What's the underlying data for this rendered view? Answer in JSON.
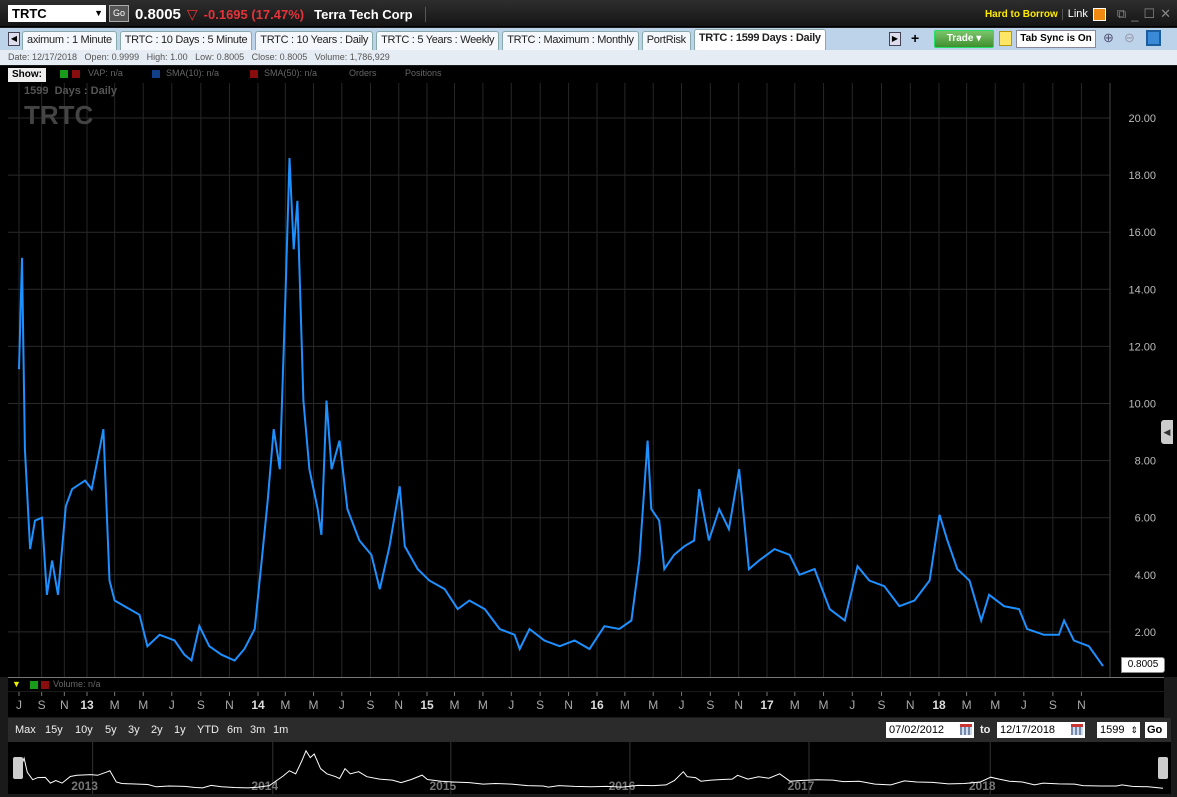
{
  "header": {
    "symbol": "TRTC",
    "go_label": "Go",
    "last": "0.8005",
    "change": "-0.1695 (17.47%)",
    "company": "Terra Tech Corp",
    "hard_to_borrow": "Hard to Borrow",
    "link_label": "Link",
    "link_color": "#f08a10"
  },
  "tabs": [
    {
      "label": "aximum : 1 Minute"
    },
    {
      "label": "TRTC : 10 Days : 5 Minute"
    },
    {
      "label": "TRTC : 10 Years : Daily"
    },
    {
      "label": "TRTC : 5 Years : Weekly"
    },
    {
      "label": "TRTC : Maximum : Monthly"
    },
    {
      "label": "PortRisk"
    },
    {
      "label": "TRTC : 1599  Days : Daily",
      "active": true
    }
  ],
  "toolbar": {
    "add": "+",
    "trade": "Trade ▾",
    "tab_sync": "Tab Sync is On"
  },
  "info": "Date: 12/17/2018   Open: 0.9999   High: 1.00   Low: 0.8005   Close: 0.8005   Volume: 1,786,929",
  "show": {
    "label": "Show:",
    "vap": "VAP: n/a",
    "sma10": "SMA(10): n/a",
    "sma50": "SMA(50): n/a",
    "orders": "Orders",
    "positions": "Positions"
  },
  "chart_overlay": {
    "period": "1599  Days : Daily",
    "symbol": "TRTC",
    "last_label": "0.8005"
  },
  "volume": {
    "label": "Volume: n/a"
  },
  "range_buttons": [
    "Max",
    "15y",
    "10y",
    "5y",
    "3y",
    "2y",
    "1y",
    "YTD",
    "6m",
    "3m",
    "1m"
  ],
  "date_range": {
    "from": "07/02/2012",
    "to_label": "to",
    "to": "12/17/2018",
    "days": "1599",
    "go": "Go"
  },
  "colors": {
    "line": "#1e90ff",
    "background": "#000000",
    "grid": "#2a2a2a"
  },
  "chart_data": {
    "type": "line",
    "xlabel": "",
    "ylabel": "",
    "ylim": [
      0,
      21
    ],
    "grid": true,
    "yticks": [
      "2.00",
      "4.00",
      "6.00",
      "8.00",
      "10.00",
      "12.00",
      "14.00",
      "16.00",
      "18.00",
      "20.00"
    ],
    "xticks": [
      [
        "J",
        "2012-07-02"
      ],
      [
        "S",
        "2012-09-01"
      ],
      [
        "N",
        "2012-11-01"
      ],
      [
        "13",
        "2013-01-01"
      ],
      [
        "M",
        "2013-03-01"
      ],
      [
        "M",
        "2013-05-01"
      ],
      [
        "J",
        "2013-07-01"
      ],
      [
        "S",
        "2013-09-01"
      ],
      [
        "N",
        "2013-11-01"
      ],
      [
        "14",
        "2014-01-01"
      ],
      [
        "M",
        "2014-03-01"
      ],
      [
        "M",
        "2014-05-01"
      ],
      [
        "J",
        "2014-07-01"
      ],
      [
        "S",
        "2014-09-01"
      ],
      [
        "N",
        "2014-11-01"
      ],
      [
        "15",
        "2015-01-01"
      ],
      [
        "M",
        "2015-03-01"
      ],
      [
        "M",
        "2015-05-01"
      ],
      [
        "J",
        "2015-07-01"
      ],
      [
        "S",
        "2015-09-01"
      ],
      [
        "N",
        "2015-11-01"
      ],
      [
        "16",
        "2016-01-01"
      ],
      [
        "M",
        "2016-03-01"
      ],
      [
        "M",
        "2016-05-01"
      ],
      [
        "J",
        "2016-07-01"
      ],
      [
        "S",
        "2016-09-01"
      ],
      [
        "N",
        "2016-11-01"
      ],
      [
        "17",
        "2017-01-01"
      ],
      [
        "M",
        "2017-03-01"
      ],
      [
        "M",
        "2017-05-01"
      ],
      [
        "J",
        "2017-07-01"
      ],
      [
        "S",
        "2017-09-01"
      ],
      [
        "N",
        "2017-11-01"
      ],
      [
        "18",
        "2018-01-01"
      ],
      [
        "M",
        "2018-03-01"
      ],
      [
        "M",
        "2018-05-01"
      ],
      [
        "J",
        "2018-07-01"
      ],
      [
        "S",
        "2018-09-01"
      ],
      [
        "N",
        "2018-11-01"
      ]
    ],
    "nav_years": [
      "2013",
      "2014",
      "2015",
      "2016",
      "2017",
      "2018"
    ],
    "points": [
      [
        "2012-07-02",
        11.2
      ],
      [
        "2012-07-10",
        15.1
      ],
      [
        "2012-07-18",
        8.4
      ],
      [
        "2012-08-01",
        4.9
      ],
      [
        "2012-08-14",
        5.9
      ],
      [
        "2012-09-02",
        6.0
      ],
      [
        "2012-09-15",
        3.3
      ],
      [
        "2012-09-29",
        4.5
      ],
      [
        "2012-10-15",
        3.3
      ],
      [
        "2012-11-05",
        6.4
      ],
      [
        "2012-11-22",
        7.0
      ],
      [
        "2012-12-27",
        7.3
      ],
      [
        "2013-01-11",
        7.0
      ],
      [
        "2013-01-28",
        8.4
      ],
      [
        "2013-02-05",
        9.1
      ],
      [
        "2013-02-18",
        3.8
      ],
      [
        "2013-03-01",
        3.1
      ],
      [
        "2013-03-22",
        2.9
      ],
      [
        "2013-04-23",
        2.6
      ],
      [
        "2013-05-10",
        1.5
      ],
      [
        "2013-06-05",
        1.9
      ],
      [
        "2013-07-07",
        1.7
      ],
      [
        "2013-07-28",
        1.2
      ],
      [
        "2013-08-12",
        1.0
      ],
      [
        "2013-08-29",
        2.2
      ],
      [
        "2013-09-19",
        1.5
      ],
      [
        "2013-10-15",
        1.2
      ],
      [
        "2013-11-12",
        1.0
      ],
      [
        "2013-12-03",
        1.4
      ],
      [
        "2013-12-25",
        2.1
      ],
      [
        "2014-01-09",
        4.5
      ],
      [
        "2014-01-22",
        6.6
      ],
      [
        "2014-02-04",
        9.1
      ],
      [
        "2014-02-17",
        7.7
      ],
      [
        "2014-03-01",
        13.6
      ],
      [
        "2014-03-10",
        18.6
      ],
      [
        "2014-03-19",
        15.4
      ],
      [
        "2014-03-27",
        17.1
      ],
      [
        "2014-04-09",
        10.1
      ],
      [
        "2014-04-22",
        7.7
      ],
      [
        "2014-05-10",
        6.3
      ],
      [
        "2014-05-18",
        5.4
      ],
      [
        "2014-05-29",
        10.1
      ],
      [
        "2014-06-09",
        7.7
      ],
      [
        "2014-06-26",
        8.7
      ],
      [
        "2014-07-13",
        6.3
      ],
      [
        "2014-08-08",
        5.2
      ],
      [
        "2014-09-03",
        4.7
      ],
      [
        "2014-09-21",
        3.5
      ],
      [
        "2014-10-12",
        5.0
      ],
      [
        "2014-11-03",
        7.1
      ],
      [
        "2014-11-14",
        5.0
      ],
      [
        "2014-12-12",
        4.2
      ],
      [
        "2015-01-06",
        3.8
      ],
      [
        "2015-02-08",
        3.5
      ],
      [
        "2015-03-08",
        2.8
      ],
      [
        "2015-04-02",
        3.1
      ],
      [
        "2015-05-05",
        2.8
      ],
      [
        "2015-06-06",
        2.1
      ],
      [
        "2015-07-08",
        1.9
      ],
      [
        "2015-07-19",
        1.4
      ],
      [
        "2015-08-09",
        2.1
      ],
      [
        "2015-09-10",
        1.7
      ],
      [
        "2015-10-13",
        1.5
      ],
      [
        "2015-11-14",
        1.7
      ],
      [
        "2015-12-16",
        1.4
      ],
      [
        "2016-01-17",
        2.2
      ],
      [
        "2016-02-18",
        2.1
      ],
      [
        "2016-03-15",
        2.4
      ],
      [
        "2016-04-01",
        4.5
      ],
      [
        "2016-04-19",
        8.7
      ],
      [
        "2016-04-27",
        6.3
      ],
      [
        "2016-05-14",
        5.9
      ],
      [
        "2016-05-25",
        4.2
      ],
      [
        "2016-06-15",
        4.7
      ],
      [
        "2016-07-07",
        5.0
      ],
      [
        "2016-07-28",
        5.2
      ],
      [
        "2016-08-08",
        7.0
      ],
      [
        "2016-08-29",
        5.2
      ],
      [
        "2016-09-20",
        6.3
      ],
      [
        "2016-10-11",
        5.6
      ],
      [
        "2016-11-02",
        7.7
      ],
      [
        "2016-11-13",
        5.9
      ],
      [
        "2016-11-23",
        4.2
      ],
      [
        "2016-12-15",
        4.5
      ],
      [
        "2017-01-17",
        4.9
      ],
      [
        "2017-02-18",
        4.7
      ],
      [
        "2017-03-11",
        4.0
      ],
      [
        "2017-04-12",
        4.2
      ],
      [
        "2017-05-14",
        2.8
      ],
      [
        "2017-06-15",
        2.4
      ],
      [
        "2017-07-12",
        4.3
      ],
      [
        "2017-08-06",
        3.8
      ],
      [
        "2017-09-07",
        3.6
      ],
      [
        "2017-10-09",
        2.9
      ],
      [
        "2017-11-10",
        3.1
      ],
      [
        "2017-12-12",
        3.8
      ],
      [
        "2018-01-02",
        6.1
      ],
      [
        "2018-01-19",
        5.2
      ],
      [
        "2018-02-09",
        4.2
      ],
      [
        "2018-03-07",
        3.8
      ],
      [
        "2018-04-01",
        2.4
      ],
      [
        "2018-04-18",
        3.3
      ],
      [
        "2018-05-20",
        2.9
      ],
      [
        "2018-06-21",
        2.8
      ],
      [
        "2018-07-08",
        2.1
      ],
      [
        "2018-08-13",
        1.9
      ],
      [
        "2018-09-14",
        1.9
      ],
      [
        "2018-09-25",
        2.4
      ],
      [
        "2018-10-16",
        1.7
      ],
      [
        "2018-11-17",
        1.5
      ],
      [
        "2018-12-17",
        0.8005
      ]
    ]
  }
}
